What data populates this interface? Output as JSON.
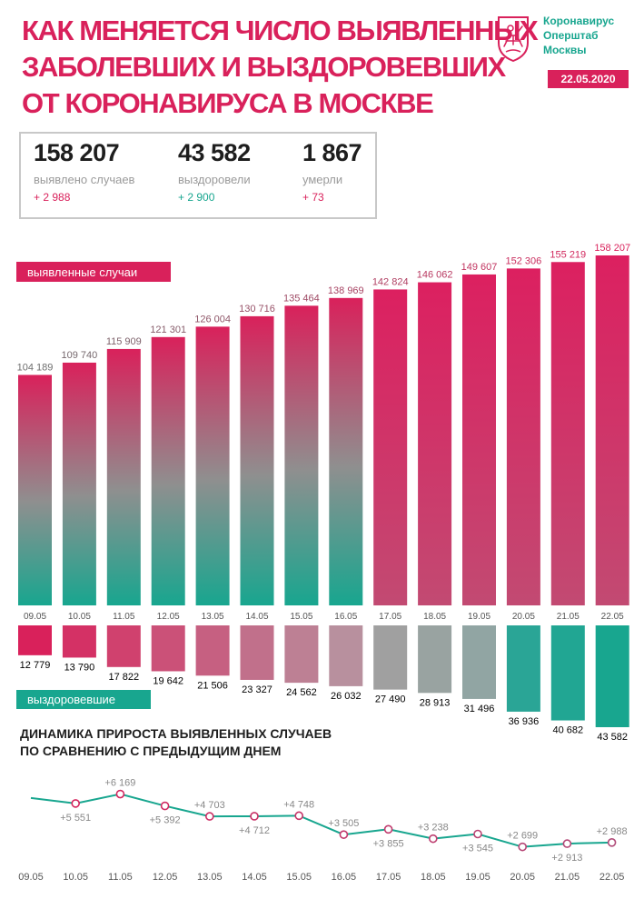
{
  "header": {
    "title_lines": [
      "КАК МЕНЯЕТСЯ ЧИСЛО ВЫЯВЛЕННЫХ",
      "ЗАБОЛЕВШИХ И ВЫЗДОРОВЕВШИХ",
      "ОТ КОРОНАВИРУСА В МОСКВЕ"
    ],
    "logo_lines": [
      "Коронавирус",
      "Оперштаб",
      "Москвы"
    ],
    "date": "22.05.2020"
  },
  "stats": [
    {
      "value": "158 207",
      "label": "выявлено случаев",
      "delta": "+ 2 988",
      "delta_color": "#d9215b"
    },
    {
      "value": "43 582",
      "label": "выздоровели",
      "delta": "+ 2 900",
      "delta_color": "#18a68f"
    },
    {
      "value": "1 867",
      "label": "умерли",
      "delta": "+ 73",
      "delta_color": "#d9215b"
    }
  ],
  "colors": {
    "accent_pink": "#d9215b",
    "accent_teal": "#18a68f",
    "bar_mid_gray": "#8f8f8f"
  },
  "chart_data": [
    {
      "type": "bar",
      "title": "",
      "legend_label_cases": "выявленные случаи",
      "legend_label_recovered": "выздоровевшие",
      "categories": [
        "09.05",
        "10.05",
        "11.05",
        "12.05",
        "13.05",
        "14.05",
        "15.05",
        "16.05",
        "17.05",
        "18.05",
        "19.05",
        "20.05",
        "21.05",
        "22.05"
      ],
      "series": [
        {
          "name": "выявленные случаи",
          "values": [
            104189,
            109740,
            115909,
            121301,
            126004,
            130716,
            135464,
            138969,
            142824,
            146062,
            149607,
            152306,
            155219,
            158207
          ],
          "labels": [
            "104 189",
            "109 740",
            "115 909",
            "121 301",
            "126 004",
            "130 716",
            "135 464",
            "138 969",
            "142 824",
            "146 062",
            "149 607",
            "152 306",
            "155 219",
            "158 207"
          ]
        },
        {
          "name": "выздоровевшие",
          "values": [
            12779,
            13790,
            17822,
            19642,
            21506,
            23327,
            24562,
            26032,
            27490,
            28913,
            31496,
            36936,
            40682,
            43582
          ],
          "labels": [
            "12 779",
            "13 790",
            "17 822",
            "19 642",
            "21 506",
            "23 327",
            "24 562",
            "26 032",
            "27 490",
            "28 913",
            "31 496",
            "36 936",
            "40 682",
            "43 582"
          ]
        }
      ]
    },
    {
      "type": "line",
      "title_lines": [
        "ДИНАМИКА ПРИРОСТА ВЫЯВЛЕННЫХ СЛУЧАЕВ",
        "ПО СРАВНЕНИЮ С ПРЕДЫДУЩИМ ДНЕМ"
      ],
      "categories": [
        "09.05",
        "10.05",
        "11.05",
        "12.05",
        "13.05",
        "14.05",
        "15.05",
        "16.05",
        "17.05",
        "18.05",
        "19.05",
        "20.05",
        "21.05",
        "22.05"
      ],
      "values": [
        null,
        5551,
        6169,
        5392,
        4703,
        4712,
        4748,
        3505,
        3855,
        3238,
        3545,
        2699,
        2913,
        2988
      ],
      "labels": [
        "",
        "+5 551",
        "+6 169",
        "+5 392",
        "+4 703",
        "+4 712",
        "+4 748",
        "+3 505",
        "+3 855",
        "+3 238",
        "+3 545",
        "+2 699",
        "+2 913",
        "+2 988"
      ],
      "label_above": [
        false,
        false,
        true,
        false,
        true,
        false,
        true,
        true,
        false,
        true,
        false,
        true,
        false,
        true
      ]
    }
  ]
}
